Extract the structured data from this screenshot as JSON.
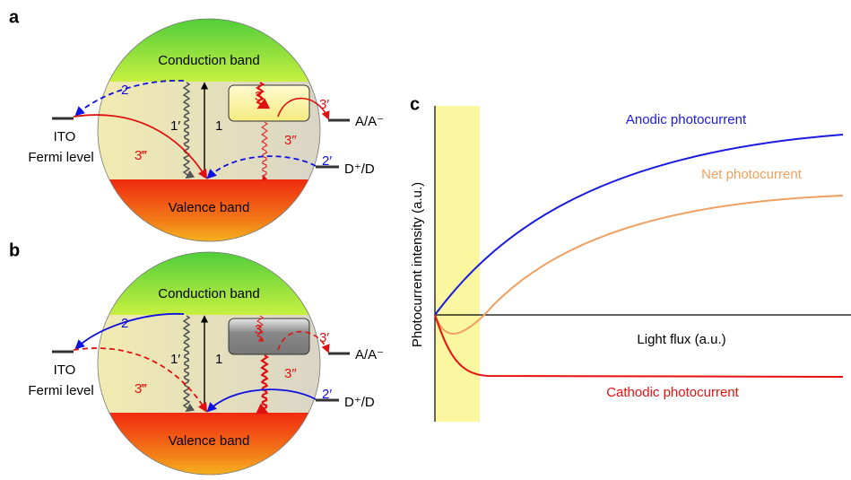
{
  "panels": [
    {
      "label": "a",
      "conduction_band": "Conduction band",
      "valence_band": "Valence band",
      "electrode": "ITO",
      "fermi_level": "Fermi level",
      "acceptor": "A/A⁻",
      "donor": "D⁺/D",
      "arrows": [
        "1",
        "1′",
        "2",
        "2′",
        "3",
        "3′",
        "3″",
        "3‴"
      ]
    },
    {
      "label": "b",
      "conduction_band": "Conduction band",
      "valence_band": "Valence band",
      "electrode": "ITO",
      "fermi_level": "Fermi level",
      "acceptor": "A/A⁻",
      "donor": "D⁺/D",
      "arrows": [
        "1",
        "1′",
        "2",
        "2′",
        "3",
        "3′",
        "3″",
        "3‴"
      ]
    }
  ],
  "chart": {
    "label": "c",
    "y_label": "Photocurrent intensity (a.u.)",
    "x_label": "Light flux (a.u.)",
    "curves": [
      "Anodic photocurrent",
      "Net photocurrent",
      "Cathodic photocurrent"
    ]
  }
}
